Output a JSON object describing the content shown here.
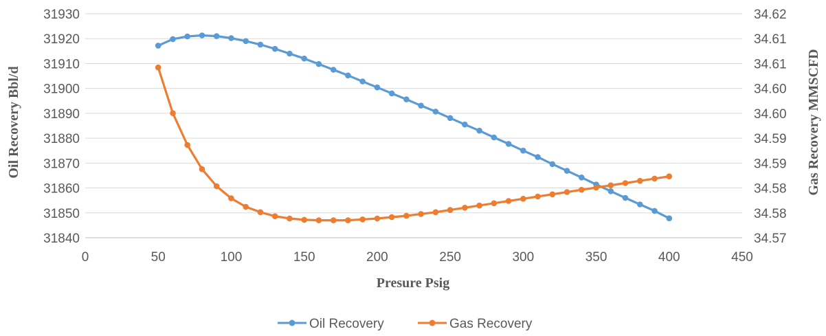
{
  "chart_data": {
    "type": "line",
    "title": "",
    "xlabel": "Presure Psig",
    "ylabel": "Oil Recovery Bbl/d",
    "y2label": "Gas Recovery MMSCFD",
    "xlim": [
      0,
      450
    ],
    "ylim": [
      31840,
      31930
    ],
    "y2lim": [
      34.57,
      34.62
    ],
    "x_ticks": [
      "0",
      "50",
      "100",
      "150",
      "200",
      "250",
      "300",
      "350",
      "400",
      "450"
    ],
    "y_ticks": [
      "31840",
      "31850",
      "31860",
      "31870",
      "31880",
      "31890",
      "31900",
      "31910",
      "31920",
      "31930"
    ],
    "y2_ticks": [
      "34.57",
      "34.58",
      "34.58",
      "34.59",
      "34.59",
      "34.60",
      "34.60",
      "34.61",
      "34.61",
      "34.62"
    ],
    "grid": true,
    "legend": "bottom",
    "x": [
      50,
      60,
      70,
      80,
      90,
      100,
      110,
      120,
      130,
      140,
      150,
      160,
      170,
      180,
      190,
      200,
      210,
      220,
      230,
      240,
      250,
      260,
      270,
      280,
      290,
      300,
      310,
      320,
      330,
      340,
      350,
      360,
      370,
      380,
      390,
      400
    ],
    "series": [
      {
        "name": "Oil Recovery",
        "axis": "left",
        "color": "#5B9BD5",
        "values": [
          31917.2,
          31919.8,
          31920.9,
          31921.3,
          31921.0,
          31920.2,
          31919.0,
          31917.6,
          31915.9,
          31914.0,
          31912.0,
          31909.8,
          31907.5,
          31905.2,
          31902.8,
          31900.4,
          31898.0,
          31895.6,
          31893.1,
          31890.7,
          31888.1,
          31885.5,
          31883.0,
          31880.3,
          31877.7,
          31875.0,
          31872.4,
          31869.6,
          31866.9,
          31864.2,
          31861.4,
          31858.7,
          31856.0,
          31853.4,
          31850.8,
          31847.8
        ]
      },
      {
        "name": "Gas Recovery",
        "axis": "right",
        "color": "#ED7D31",
        "values": [
          34.608,
          34.5978,
          34.5907,
          34.5853,
          34.5815,
          34.5788,
          34.5769,
          34.5757,
          34.5748,
          34.5743,
          34.574,
          34.5739,
          34.5739,
          34.5739,
          34.5741,
          34.5743,
          34.5746,
          34.5749,
          34.5753,
          34.5757,
          34.5762,
          34.5767,
          34.5772,
          34.5777,
          34.5782,
          34.5787,
          34.5792,
          34.5797,
          34.5802,
          34.5807,
          34.5812,
          34.5817,
          34.5822,
          34.5827,
          34.5832,
          34.5837
        ]
      }
    ]
  }
}
